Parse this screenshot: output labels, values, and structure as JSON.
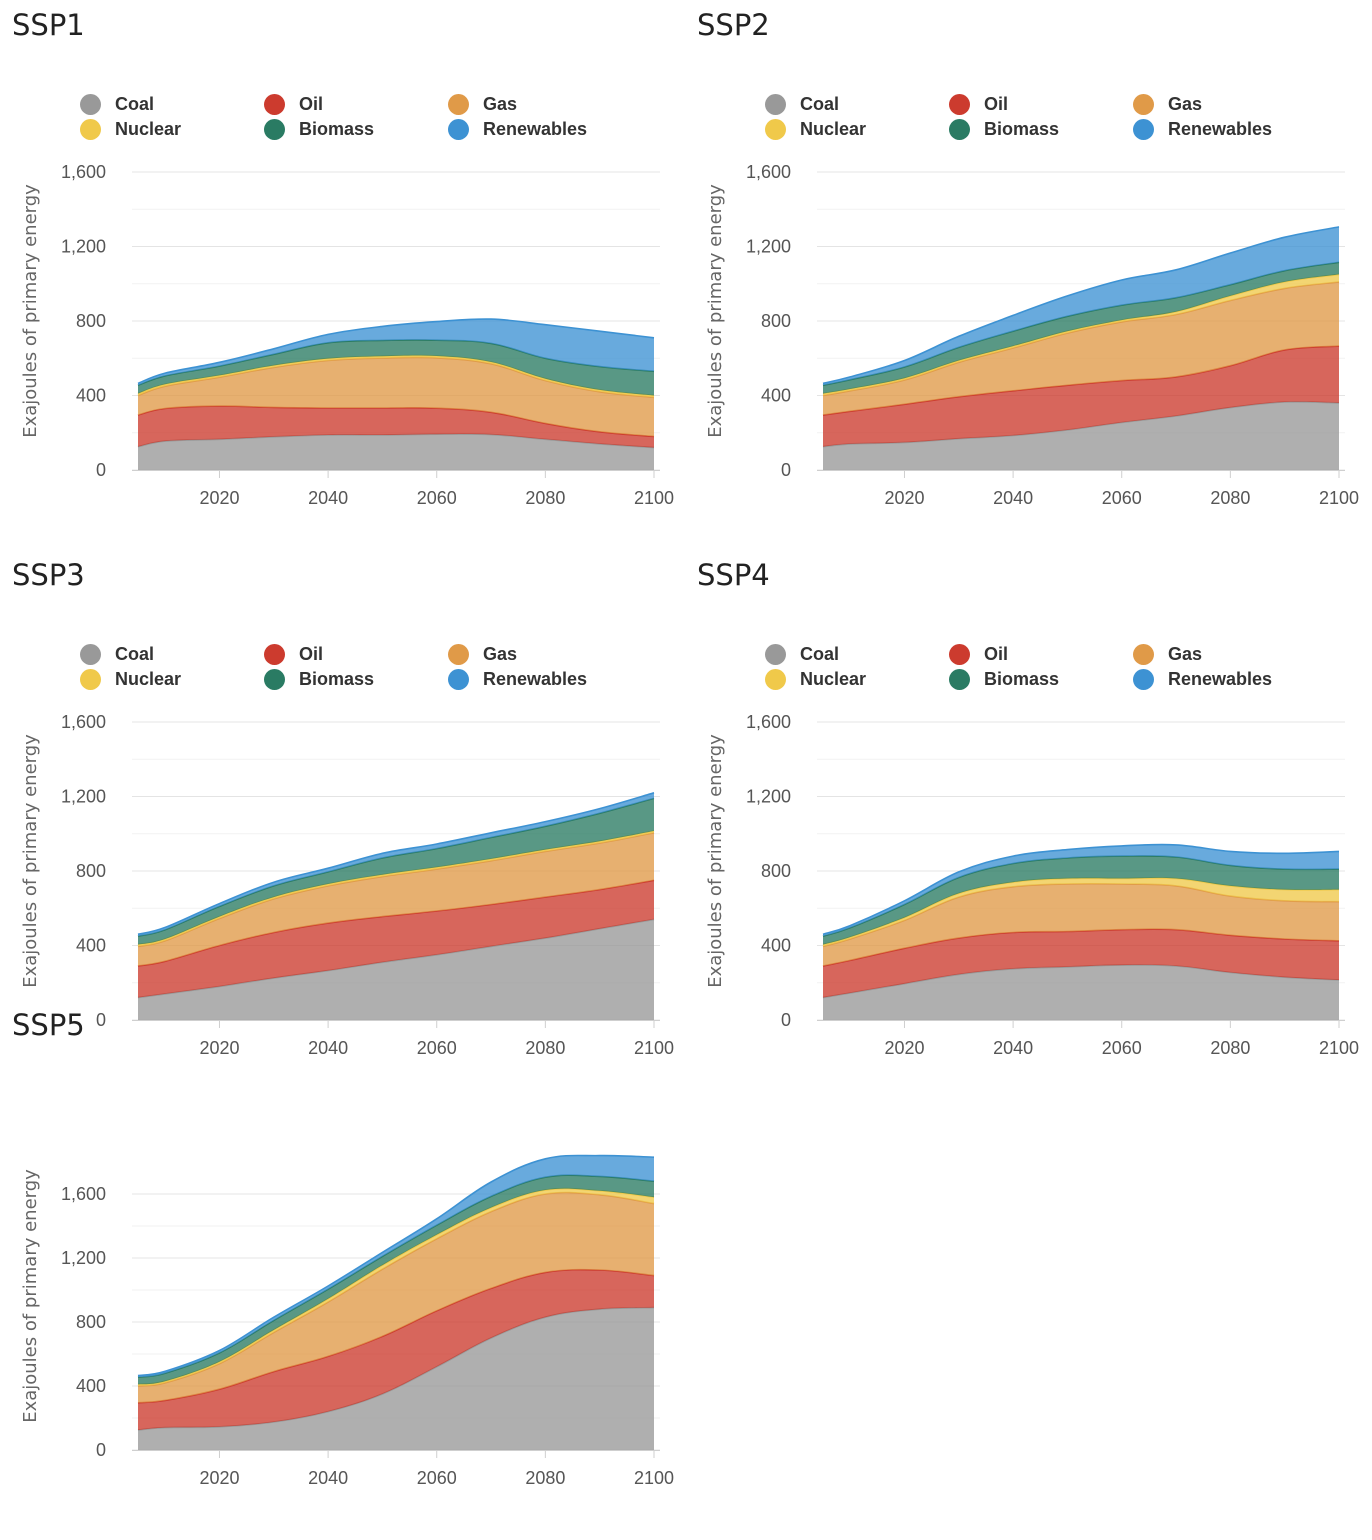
{
  "colors": {
    "coal": "#999999",
    "oil": "#cc3b2e",
    "gas": "#e09a48",
    "nuclear": "#f0c94a",
    "biomass": "#2a7b63",
    "renewables": "#3d92d3"
  },
  "chart_data": [
    {
      "type": "area",
      "stacked": true,
      "title": "SSP1",
      "ylabel": "Exajoules of primary energy",
      "x": [
        2005,
        2010,
        2020,
        2030,
        2040,
        2050,
        2060,
        2070,
        2080,
        2090,
        2100
      ],
      "ylim": [
        0,
        1600
      ],
      "xticks": [
        "2020",
        "2040",
        "2060",
        "2080",
        "2100"
      ],
      "yticks": [
        "0",
        "400",
        "800",
        "1,200",
        "1,600"
      ],
      "legend": [
        {
          "key": "coal",
          "label": "Coal"
        },
        {
          "key": "oil",
          "label": "Oil"
        },
        {
          "key": "gas",
          "label": "Gas"
        },
        {
          "key": "nuclear",
          "label": "Nuclear"
        },
        {
          "key": "biomass",
          "label": "Biomass"
        },
        {
          "key": "renewables",
          "label": "Renewables"
        }
      ],
      "series": [
        {
          "key": "coal",
          "name": "Coal",
          "values": [
            125,
            155,
            165,
            178,
            188,
            188,
            192,
            190,
            165,
            140,
            120
          ]
        },
        {
          "key": "oil",
          "name": "Oil",
          "values": [
            170,
            175,
            178,
            158,
            145,
            145,
            140,
            120,
            85,
            65,
            60
          ]
        },
        {
          "key": "gas",
          "name": "Gas",
          "values": [
            105,
            120,
            155,
            215,
            255,
            268,
            270,
            260,
            230,
            215,
            210
          ]
        },
        {
          "key": "nuclear",
          "name": "Nuclear",
          "values": [
            10,
            10,
            10,
            10,
            10,
            10,
            10,
            10,
            10,
            10,
            10
          ]
        },
        {
          "key": "biomass",
          "name": "Biomass",
          "values": [
            45,
            45,
            50,
            60,
            85,
            85,
            85,
            100,
            110,
            125,
            130
          ]
        },
        {
          "key": "renewables",
          "name": "Renewables",
          "values": [
            10,
            15,
            20,
            30,
            45,
            75,
            100,
            130,
            180,
            190,
            180
          ]
        }
      ]
    },
    {
      "type": "area",
      "stacked": true,
      "title": "SSP2",
      "ylabel": "Exajoules of primary energy",
      "x": [
        2005,
        2010,
        2020,
        2030,
        2040,
        2050,
        2060,
        2070,
        2080,
        2090,
        2100
      ],
      "ylim": [
        0,
        1600
      ],
      "xticks": [
        "2020",
        "2040",
        "2060",
        "2080",
        "2100"
      ],
      "yticks": [
        "0",
        "400",
        "800",
        "1,200",
        "1,600"
      ],
      "legend": [
        {
          "key": "coal",
          "label": "Coal"
        },
        {
          "key": "oil",
          "label": "Oil"
        },
        {
          "key": "gas",
          "label": "Gas"
        },
        {
          "key": "nuclear",
          "label": "Nuclear"
        },
        {
          "key": "biomass",
          "label": "Biomass"
        },
        {
          "key": "renewables",
          "label": "Renewables"
        }
      ],
      "series": [
        {
          "key": "coal",
          "name": "Coal",
          "values": [
            125,
            140,
            148,
            168,
            185,
            215,
            255,
            290,
            335,
            365,
            360
          ]
        },
        {
          "key": "oil",
          "name": "Oil",
          "values": [
            170,
            175,
            205,
            225,
            240,
            240,
            225,
            210,
            225,
            280,
            305
          ]
        },
        {
          "key": "gas",
          "name": "Gas",
          "values": [
            105,
            110,
            130,
            185,
            230,
            280,
            315,
            335,
            350,
            330,
            345
          ]
        },
        {
          "key": "nuclear",
          "name": "Nuclear",
          "values": [
            10,
            10,
            10,
            10,
            10,
            10,
            10,
            15,
            25,
            35,
            40
          ]
        },
        {
          "key": "biomass",
          "name": "Biomass",
          "values": [
            45,
            50,
            60,
            70,
            80,
            80,
            80,
            75,
            60,
            60,
            65
          ]
        },
        {
          "key": "renewables",
          "name": "Renewables",
          "values": [
            10,
            15,
            35,
            60,
            85,
            110,
            135,
            150,
            170,
            180,
            190
          ]
        }
      ]
    },
    {
      "type": "area",
      "stacked": true,
      "title": "SSP3",
      "ylabel": "Exajoules of primary energy",
      "x": [
        2005,
        2010,
        2020,
        2030,
        2040,
        2050,
        2060,
        2070,
        2080,
        2090,
        2100
      ],
      "ylim": [
        0,
        1600
      ],
      "xticks": [
        "2020",
        "2040",
        "2060",
        "2080",
        "2100"
      ],
      "yticks": [
        "0",
        "400",
        "800",
        "1,200",
        "1,600"
      ],
      "legend": [
        {
          "key": "coal",
          "label": "Coal"
        },
        {
          "key": "oil",
          "label": "Oil"
        },
        {
          "key": "gas",
          "label": "Gas"
        },
        {
          "key": "nuclear",
          "label": "Nuclear"
        },
        {
          "key": "biomass",
          "label": "Biomass"
        },
        {
          "key": "renewables",
          "label": "Renewables"
        }
      ],
      "series": [
        {
          "key": "coal",
          "name": "Coal",
          "values": [
            120,
            140,
            180,
            225,
            265,
            310,
            350,
            395,
            440,
            490,
            540
          ]
        },
        {
          "key": "oil",
          "name": "Oil",
          "values": [
            170,
            175,
            220,
            245,
            255,
            245,
            235,
            225,
            220,
            210,
            210
          ]
        },
        {
          "key": "gas",
          "name": "Gas",
          "values": [
            105,
            110,
            145,
            180,
            200,
            215,
            225,
            235,
            245,
            250,
            255
          ]
        },
        {
          "key": "nuclear",
          "name": "Nuclear",
          "values": [
            10,
            10,
            10,
            10,
            10,
            10,
            10,
            10,
            10,
            10,
            10
          ]
        },
        {
          "key": "biomass",
          "name": "Biomass",
          "values": [
            45,
            50,
            55,
            60,
            65,
            90,
            100,
            115,
            125,
            150,
            175
          ]
        },
        {
          "key": "renewables",
          "name": "Renewables",
          "values": [
            10,
            12,
            15,
            20,
            20,
            25,
            25,
            25,
            25,
            25,
            30
          ]
        }
      ]
    },
    {
      "type": "area",
      "stacked": true,
      "title": "SSP4",
      "ylabel": "Exajoules of primary energy",
      "x": [
        2005,
        2010,
        2020,
        2030,
        2040,
        2050,
        2060,
        2070,
        2080,
        2090,
        2100
      ],
      "ylim": [
        0,
        1600
      ],
      "xticks": [
        "2020",
        "2040",
        "2060",
        "2080",
        "2100"
      ],
      "yticks": [
        "0",
        "400",
        "800",
        "1,200",
        "1,600"
      ],
      "legend": [
        {
          "key": "coal",
          "label": "Coal"
        },
        {
          "key": "oil",
          "label": "Oil"
        },
        {
          "key": "gas",
          "label": "Gas"
        },
        {
          "key": "nuclear",
          "label": "Nuclear"
        },
        {
          "key": "biomass",
          "label": "Biomass"
        },
        {
          "key": "renewables",
          "label": "Renewables"
        }
      ],
      "series": [
        {
          "key": "coal",
          "name": "Coal",
          "values": [
            120,
            145,
            195,
            245,
            275,
            285,
            295,
            290,
            255,
            230,
            215
          ]
        },
        {
          "key": "oil",
          "name": "Oil",
          "values": [
            170,
            175,
            190,
            195,
            195,
            190,
            190,
            195,
            200,
            205,
            210
          ]
        },
        {
          "key": "gas",
          "name": "Gas",
          "values": [
            105,
            115,
            150,
            220,
            245,
            255,
            245,
            235,
            210,
            205,
            210
          ]
        },
        {
          "key": "nuclear",
          "name": "Nuclear",
          "values": [
            10,
            10,
            15,
            20,
            25,
            30,
            30,
            40,
            55,
            60,
            65
          ]
        },
        {
          "key": "biomass",
          "name": "Biomass",
          "values": [
            45,
            50,
            70,
            85,
            100,
            110,
            120,
            115,
            110,
            110,
            110
          ]
        },
        {
          "key": "renewables",
          "name": "Renewables",
          "values": [
            10,
            12,
            20,
            30,
            40,
            45,
            55,
            65,
            75,
            85,
            95
          ]
        }
      ]
    },
    {
      "type": "area",
      "stacked": true,
      "title": "SSP5",
      "ylabel": "Exajoules of primary energy",
      "x": [
        2005,
        2010,
        2020,
        2030,
        2040,
        2050,
        2060,
        2070,
        2080,
        2090,
        2100
      ],
      "ylim": [
        0,
        1800
      ],
      "xticks": [
        "2020",
        "2040",
        "2060",
        "2080",
        "2100"
      ],
      "yticks": [
        "0",
        "400",
        "800",
        "1,200",
        "1,600"
      ],
      "legend": [],
      "series": [
        {
          "key": "coal",
          "name": "Coal",
          "values": [
            125,
            140,
            145,
            175,
            240,
            350,
            520,
            700,
            830,
            880,
            890
          ]
        },
        {
          "key": "oil",
          "name": "Oil",
          "values": [
            170,
            170,
            235,
            315,
            345,
            360,
            350,
            310,
            280,
            245,
            200
          ]
        },
        {
          "key": "gas",
          "name": "Gas",
          "values": [
            105,
            110,
            160,
            245,
            340,
            420,
            450,
            480,
            490,
            470,
            450
          ]
        },
        {
          "key": "nuclear",
          "name": "Nuclear",
          "values": [
            10,
            10,
            12,
            15,
            20,
            25,
            25,
            25,
            25,
            25,
            40
          ]
        },
        {
          "key": "biomass",
          "name": "Biomass",
          "values": [
            45,
            50,
            55,
            60,
            60,
            55,
            60,
            70,
            80,
            90,
            100
          ]
        },
        {
          "key": "renewables",
          "name": "Renewables",
          "values": [
            10,
            12,
            15,
            20,
            20,
            25,
            40,
            90,
            115,
            130,
            150
          ]
        }
      ]
    }
  ]
}
